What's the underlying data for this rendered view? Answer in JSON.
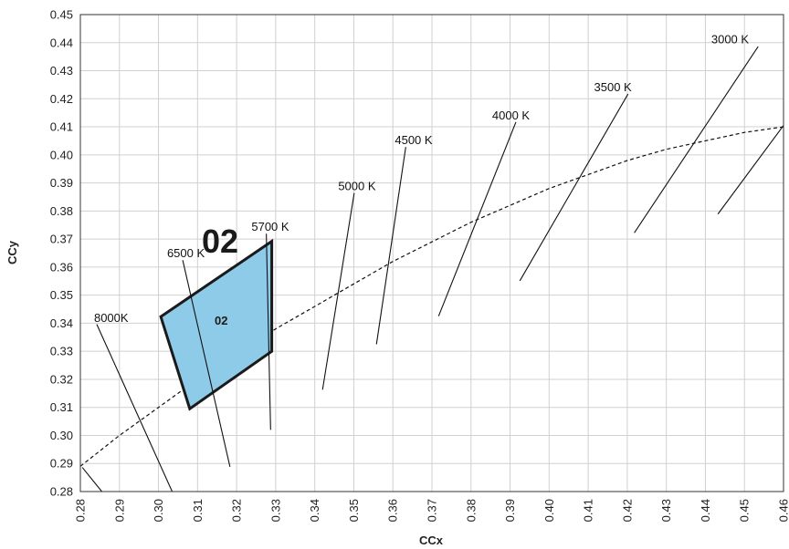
{
  "chart_data": {
    "type": "scatter",
    "title": "",
    "xlabel": "CCx",
    "ylabel": "CCy",
    "xlim": [
      0.28,
      0.46
    ],
    "ylim": [
      0.28,
      0.45
    ],
    "x_ticks": [
      "0.28",
      "0.29",
      "0.30",
      "0.31",
      "0.32",
      "0.33",
      "0.34",
      "0.35",
      "0.36",
      "0.37",
      "0.38",
      "0.39",
      "0.40",
      "0.41",
      "0.42",
      "0.43",
      "0.44",
      "0.45",
      "0.46"
    ],
    "y_ticks": [
      "0.28",
      "0.29",
      "0.30",
      "0.31",
      "0.32",
      "0.33",
      "0.34",
      "0.35",
      "0.36",
      "0.37",
      "0.38",
      "0.39",
      "0.40",
      "0.41",
      "0.42",
      "0.43",
      "0.44",
      "0.45"
    ],
    "grid": true,
    "region": {
      "label": "02",
      "inner_label": "02",
      "fill": "#8ecbe8",
      "stroke": "#1a1a1a",
      "points": [
        [
          0.3006,
          0.3423
        ],
        [
          0.329,
          0.3692
        ],
        [
          0.329,
          0.33
        ],
        [
          0.308,
          0.3095
        ]
      ]
    },
    "planckian_locus": {
      "style": "dashed",
      "points": [
        [
          0.28,
          0.289
        ],
        [
          0.29,
          0.3
        ],
        [
          0.3,
          0.31
        ],
        [
          0.31,
          0.32
        ],
        [
          0.32,
          0.329
        ],
        [
          0.33,
          0.338
        ],
        [
          0.34,
          0.346
        ],
        [
          0.35,
          0.354
        ],
        [
          0.36,
          0.362
        ],
        [
          0.37,
          0.369
        ],
        [
          0.38,
          0.376
        ],
        [
          0.39,
          0.382
        ],
        [
          0.4,
          0.388
        ],
        [
          0.41,
          0.393
        ],
        [
          0.42,
          0.398
        ],
        [
          0.43,
          0.402
        ],
        [
          0.44,
          0.405
        ],
        [
          0.45,
          0.408
        ],
        [
          0.46,
          0.41
        ]
      ]
    },
    "isotemperature_lines": [
      {
        "label": "8000K",
        "start": [
          0.2842,
          0.3396
        ],
        "end": [
          0.3035,
          0.28
        ],
        "label_at": [
          0.2835,
          0.3405
        ]
      },
      {
        "label": "6500 K",
        "start": [
          0.3062,
          0.3625
        ],
        "end": [
          0.3183,
          0.2888
        ],
        "label_at": [
          0.3022,
          0.3635
        ]
      },
      {
        "label": "5700 K",
        "start": [
          0.3276,
          0.3719
        ],
        "end": [
          0.3287,
          0.302
        ],
        "label_at": [
          0.3238,
          0.373
        ]
      },
      {
        "label": "5000 K",
        "start": [
          0.3501,
          0.3864
        ],
        "end": [
          0.342,
          0.3163
        ],
        "label_at": [
          0.346,
          0.3875
        ]
      },
      {
        "label": "4500 K",
        "start": [
          0.3633,
          0.4028
        ],
        "end": [
          0.3558,
          0.3325
        ],
        "label_at": [
          0.3605,
          0.4038
        ]
      },
      {
        "label": "4000 K",
        "start": [
          0.3915,
          0.4117
        ],
        "end": [
          0.3717,
          0.3425
        ],
        "label_at": [
          0.3854,
          0.4127
        ]
      },
      {
        "label": "3500 K",
        "start": [
          0.4202,
          0.4217
        ],
        "end": [
          0.3925,
          0.3551
        ],
        "label_at": [
          0.4115,
          0.4227
        ]
      },
      {
        "label": "3000 K",
        "start": [
          0.4535,
          0.4386
        ],
        "end": [
          0.4218,
          0.3722
        ],
        "label_at": [
          0.4415,
          0.4397
        ]
      },
      {
        "label": "",
        "start": [
          0.46,
          0.4105
        ],
        "end": [
          0.4432,
          0.3789
        ]
      },
      {
        "label": "",
        "start": [
          0.2805,
          0.2886
        ],
        "end": [
          0.2855,
          0.28
        ]
      }
    ]
  }
}
